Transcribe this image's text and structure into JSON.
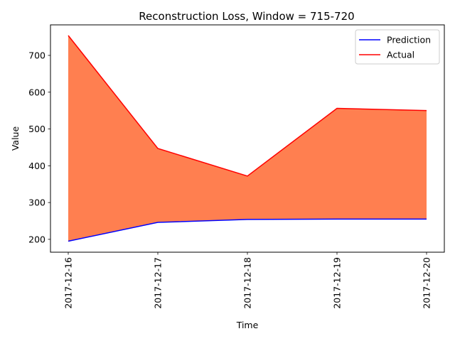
{
  "chart_data": {
    "type": "line",
    "title": "Reconstruction Loss, Window = 715-720",
    "xlabel": "Time",
    "ylabel": "Value",
    "categories": [
      "2017-12-16",
      "2017-12-17",
      "2017-12-18",
      "2017-12-19",
      "2017-12-20"
    ],
    "ylim": [
      165,
      783
    ],
    "yticks": [
      200,
      300,
      400,
      500,
      600,
      700
    ],
    "grid": false,
    "legend_position": "top-right",
    "fill_between": {
      "color": "#ff7f50"
    },
    "series": [
      {
        "name": "Prediction",
        "color": "#0000ff",
        "values": [
          195,
          246,
          254,
          255,
          255
        ]
      },
      {
        "name": "Actual",
        "color": "#ff0000",
        "values": [
          754,
          447,
          372,
          556,
          550
        ]
      }
    ]
  }
}
